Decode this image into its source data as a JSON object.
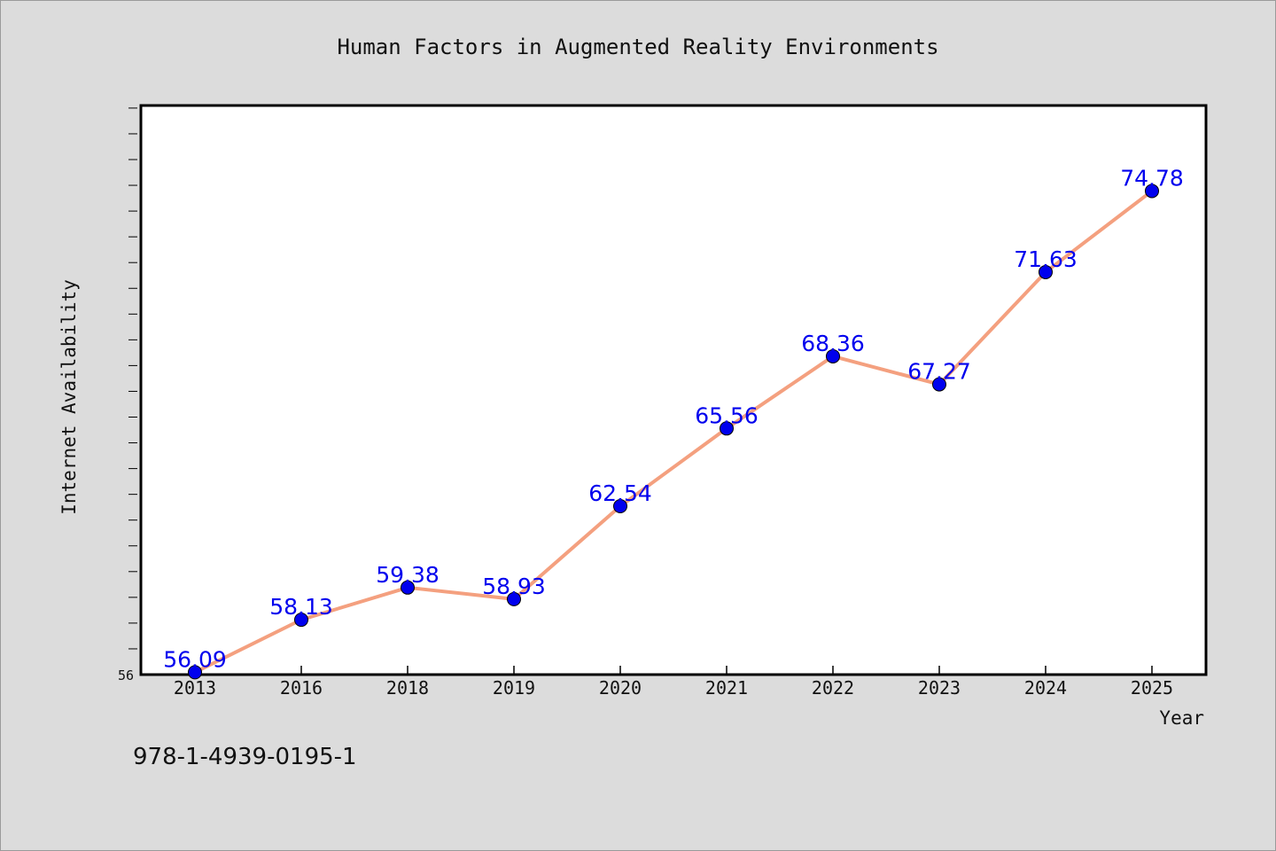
{
  "chart_data": {
    "type": "line",
    "title": "Human Factors in Augmented Reality Environments",
    "xlabel": "Year",
    "ylabel": "Internet Availability",
    "categories": [
      "2013",
      "2016",
      "2018",
      "2019",
      "2020",
      "2021",
      "2022",
      "2023",
      "2024",
      "2025"
    ],
    "series": [
      {
        "values": [
          56.09,
          58.13,
          59.38,
          58.93,
          62.54,
          65.56,
          68.36,
          67.27,
          71.63,
          74.78
        ],
        "labels": [
          "56.09",
          "58.13",
          "59.38",
          "58.93",
          "62.54",
          "65.56",
          "68.36",
          "67.27",
          "71.63",
          "74.78"
        ]
      }
    ],
    "ylim": [
      56,
      78.1
    ],
    "y_tick_labels": [
      "56"
    ],
    "grid": false,
    "line_color": "#f4a07f",
    "marker_color": "#0000ee"
  },
  "annotation": {
    "text": "978-1-4939-0195-1"
  }
}
